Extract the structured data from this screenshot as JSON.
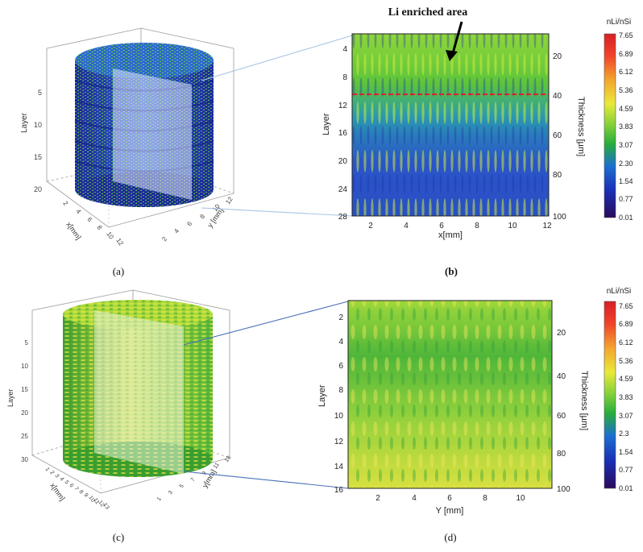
{
  "panels": [
    {
      "id": "a",
      "caption": "(a)",
      "kind": "3d-cylinder",
      "zlabel": "Layer",
      "xlabel": "x[mm]",
      "ylabel": "y [mm]",
      "z_ticks": [
        "5",
        "10",
        "15",
        "20"
      ],
      "x_ticks": [
        "2",
        "4",
        "6",
        "8",
        "10",
        "12"
      ],
      "y_ticks": [
        "2",
        "4",
        "6",
        "8",
        "10",
        "12"
      ],
      "colors": {
        "base": "#1f3fb8",
        "mid": "#3fae3a",
        "hi": "#c9e63b"
      }
    },
    {
      "id": "b",
      "caption": "(b)",
      "kind": "heatmap",
      "annotation": "Li enriched area",
      "ylabel": "Layer",
      "xlabel": "x[mm]",
      "y2label": "Thickness [µm]",
      "y_ticks": [
        "4",
        "8",
        "12",
        "16",
        "20",
        "24",
        "28"
      ],
      "x_ticks": [
        "2",
        "4",
        "6",
        "8",
        "10",
        "12"
      ],
      "y2_ticks": [
        "20",
        "40",
        "60",
        "80",
        "100"
      ],
      "colors": {
        "top": "#7fd33a",
        "bottom": "#2a4fc4",
        "dash": "#e0202a"
      }
    },
    {
      "id": "c",
      "caption": "(c)",
      "kind": "3d-cylinder",
      "zlabel": "Layer",
      "xlabel": "x[mm]",
      "ylabel": "y[mm]",
      "z_ticks": [
        "5",
        "10",
        "15",
        "20",
        "25",
        "30"
      ],
      "x_ticks": [
        "1",
        "2",
        "3",
        "4",
        "5",
        "6",
        "7",
        "8",
        "9",
        "10",
        "11",
        "12",
        "13"
      ],
      "y_ticks": [
        "1",
        "3",
        "5",
        "7",
        "9",
        "11",
        "13"
      ],
      "colors": {
        "base": "#3faa2e",
        "mid": "#9fd23a",
        "hi": "#f0e040"
      }
    },
    {
      "id": "d",
      "caption": "(d)",
      "kind": "heatmap",
      "ylabel": "Layer",
      "xlabel": "Y [mm]",
      "y2label": "Thickness [µm]",
      "y_ticks": [
        "2",
        "4",
        "6",
        "8",
        "10",
        "12",
        "14",
        "16"
      ],
      "x_ticks": [
        "2",
        "4",
        "6",
        "8",
        "10"
      ],
      "y2_ticks": [
        "20",
        "40",
        "60",
        "80",
        "100"
      ],
      "colors": {
        "top": "#4fb83a",
        "bottom": "#d8e040"
      }
    }
  ],
  "colorbars": [
    {
      "title": "nLi/nSi",
      "ticks": [
        "7.65",
        "6.89",
        "6.12",
        "5.36",
        "4.59",
        "3.83",
        "3.07",
        "2.30",
        "1.54",
        "0.77",
        "0.01"
      ]
    },
    {
      "title": "nLi/nSi",
      "ticks": [
        "7.65",
        "6.89",
        "6.12",
        "5.36",
        "4.59",
        "3.83",
        "3.07",
        "2.3",
        "1.54",
        "0.77",
        "0.01"
      ]
    }
  ],
  "chart_data": [
    {
      "type": "heatmap",
      "panel": "b",
      "xlabel": "x[mm]",
      "ylabel": "Layer",
      "y2label": "Thickness [µm]",
      "xlim": [
        1,
        12
      ],
      "ylim": [
        28,
        2
      ],
      "y2lim": [
        100,
        7
      ],
      "color_range": [
        0.01,
        7.65
      ],
      "annotation": "Li enriched area",
      "dashed_line_layer": 10.5
    },
    {
      "type": "heatmap",
      "panel": "d",
      "xlabel": "Y [mm]",
      "ylabel": "Layer",
      "y2label": "Thickness [µm]",
      "xlim": [
        0.3,
        11.7
      ],
      "ylim": [
        16,
        1.3
      ],
      "y2lim": [
        100,
        4
      ],
      "color_range": [
        0.01,
        7.65
      ]
    }
  ]
}
